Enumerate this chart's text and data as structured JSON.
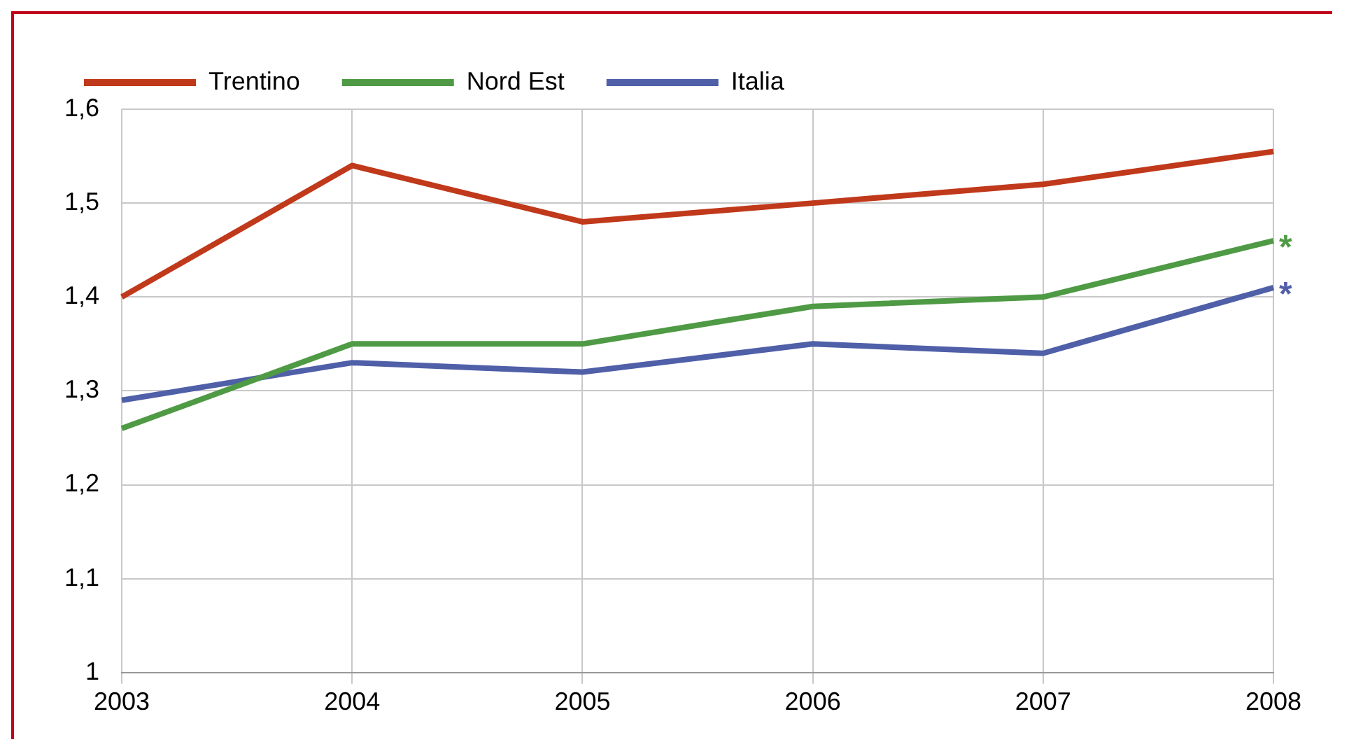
{
  "chart_data": {
    "type": "line",
    "categories": [
      "2003",
      "2004",
      "2005",
      "2006",
      "2007",
      "2008"
    ],
    "series": [
      {
        "name": "Trentino",
        "color": "#c0391b",
        "values": [
          1.4,
          1.54,
          1.48,
          1.5,
          1.52,
          1.555
        ]
      },
      {
        "name": "Nord Est",
        "color": "#4f9a45",
        "values": [
          1.26,
          1.35,
          1.35,
          1.39,
          1.4,
          1.46
        ]
      },
      {
        "name": "Italia",
        "color": "#4f5fa8",
        "values": [
          1.29,
          1.33,
          1.32,
          1.35,
          1.34,
          1.41
        ]
      }
    ],
    "ylim": [
      1,
      1.6
    ],
    "yticks": [
      1,
      {
        "value": 1.1,
        "label": "1,1"
      },
      {
        "value": 1.2,
        "label": "1,2"
      },
      {
        "value": 1.3,
        "label": "1,3"
      },
      {
        "value": 1.4,
        "label": "1,4"
      },
      {
        "value": 1.5,
        "label": "1,5"
      },
      {
        "value": 1.6,
        "label": "1,6"
      }
    ],
    "annotations": [
      {
        "text": "*",
        "x": "2008",
        "y": 1.46
      },
      {
        "text": "*",
        "x": "2008",
        "y": 1.41
      }
    ],
    "grid": true,
    "legend": "top left",
    "marker": "none",
    "line_style": "solid"
  }
}
